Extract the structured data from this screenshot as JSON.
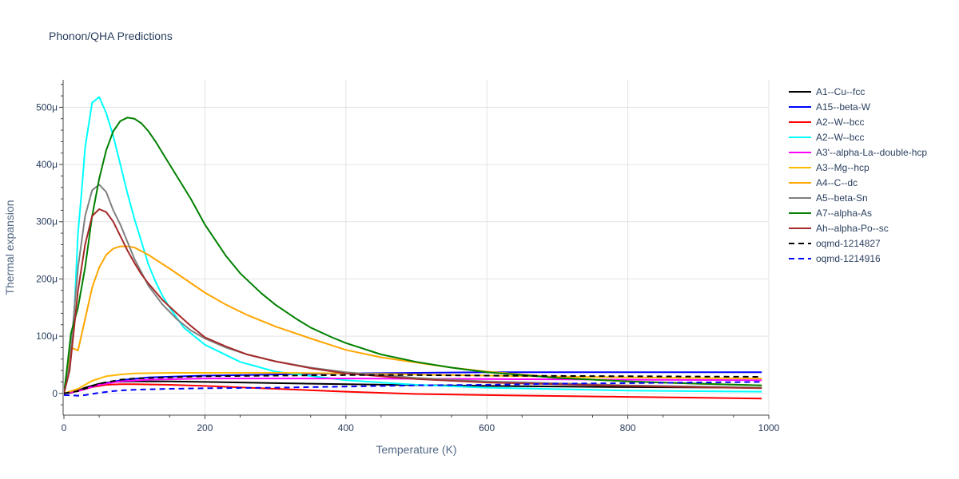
{
  "chart_data": {
    "type": "line",
    "title": "Phonon/QHA Predictions",
    "xlabel": "Temperature (K)",
    "ylabel": "Thermal expansion",
    "xlim": [
      0,
      1000
    ],
    "ylim": [
      -3.8e-05,
      0.000548
    ],
    "x_ticks": [
      0,
      200,
      400,
      600,
      800,
      1000
    ],
    "x_tick_labels": [
      "0",
      "200",
      "400",
      "600",
      "800",
      "1000"
    ],
    "y_ticks": [
      0,
      0.0001,
      0.0002,
      0.0003,
      0.0004,
      0.0005
    ],
    "y_tick_labels": [
      "0",
      "100μ",
      "200μ",
      "300μ",
      "400μ",
      "500μ"
    ],
    "grid": true,
    "legend_position": "right",
    "series": [
      {
        "name": "A1--Cu--fcc",
        "color": "#000000",
        "dash": "solid",
        "points": [
          [
            0,
            0
          ],
          [
            10,
            1e-06
          ],
          [
            20,
            5e-06
          ],
          [
            30,
            1e-05
          ],
          [
            50,
            1.7e-05
          ],
          [
            70,
            2e-05
          ],
          [
            100,
            2.1e-05
          ],
          [
            150,
            2.1e-05
          ],
          [
            200,
            2e-05
          ],
          [
            300,
            1.8e-05
          ],
          [
            400,
            1.6e-05
          ],
          [
            600,
            1.3e-05
          ],
          [
            800,
            1.1e-05
          ],
          [
            990,
            1e-05
          ]
        ]
      },
      {
        "name": "A15--beta-W",
        "color": "#0000ff",
        "dash": "solid",
        "points": [
          [
            0,
            0
          ],
          [
            20,
            4e-06
          ],
          [
            50,
            1.5e-05
          ],
          [
            80,
            2.3e-05
          ],
          [
            120,
            2.8e-05
          ],
          [
            200,
            3.1e-05
          ],
          [
            300,
            3.3e-05
          ],
          [
            400,
            3.5e-05
          ],
          [
            500,
            3.6e-05
          ],
          [
            600,
            3.7e-05
          ],
          [
            800,
            3.7e-05
          ],
          [
            990,
            3.7e-05
          ]
        ]
      },
      {
        "name": "A2--W--bcc",
        "color": "#ff0000",
        "dash": "solid",
        "points": [
          [
            0,
            0
          ],
          [
            20,
            4e-06
          ],
          [
            40,
            1.1e-05
          ],
          [
            60,
            1.5e-05
          ],
          [
            80,
            1.6e-05
          ],
          [
            100,
            1.6e-05
          ],
          [
            150,
            1.5e-05
          ],
          [
            200,
            1.3e-05
          ],
          [
            300,
            8e-06
          ],
          [
            400,
            3e-06
          ],
          [
            500,
            -1e-06
          ],
          [
            600,
            -3e-06
          ],
          [
            800,
            -6e-06
          ],
          [
            990,
            -9e-06
          ]
        ]
      },
      {
        "name": "A2--W--bcc",
        "color": "#00ffff",
        "dash": "solid",
        "points": [
          [
            0,
            0
          ],
          [
            8,
            4e-05
          ],
          [
            15,
            0.00015
          ],
          [
            20,
            0.00028
          ],
          [
            25,
            0.00035
          ],
          [
            30,
            0.00043
          ],
          [
            40,
            0.000508
          ],
          [
            50,
            0.000518
          ],
          [
            60,
            0.00049
          ],
          [
            70,
            0.00045
          ],
          [
            80,
            0.0004
          ],
          [
            90,
            0.00035
          ],
          [
            100,
            0.000305
          ],
          [
            110,
            0.000265
          ],
          [
            120,
            0.000225
          ],
          [
            130,
            0.000195
          ],
          [
            140,
            0.00017
          ],
          [
            150,
            0.00015
          ],
          [
            170,
            0.000115
          ],
          [
            200,
            8.5e-05
          ],
          [
            250,
            5.5e-05
          ],
          [
            300,
            3.8e-05
          ],
          [
            400,
            2.3e-05
          ],
          [
            500,
            1.5e-05
          ],
          [
            600,
            1e-05
          ],
          [
            800,
            5e-06
          ],
          [
            990,
            3e-06
          ]
        ]
      },
      {
        "name": "A3'--alpha-La--double-hcp",
        "color": "#ff00ff",
        "dash": "solid",
        "points": [
          [
            0,
            0
          ],
          [
            20,
            4e-06
          ],
          [
            50,
            1.5e-05
          ],
          [
            80,
            2.1e-05
          ],
          [
            120,
            2.4e-05
          ],
          [
            200,
            2.6e-05
          ],
          [
            300,
            2.6e-05
          ],
          [
            400,
            2.6e-05
          ],
          [
            600,
            2.5e-05
          ],
          [
            800,
            2.4e-05
          ],
          [
            990,
            2.3e-05
          ]
        ]
      },
      {
        "name": "A3--Mg--hcp",
        "color": "#ffb700",
        "dash": "solid",
        "points": [
          [
            0,
            0
          ],
          [
            20,
            8e-06
          ],
          [
            40,
            2.2e-05
          ],
          [
            60,
            3e-05
          ],
          [
            80,
            3.3e-05
          ],
          [
            100,
            3.5e-05
          ],
          [
            150,
            3.6e-05
          ],
          [
            200,
            3.6e-05
          ],
          [
            300,
            3.6e-05
          ],
          [
            400,
            3.5e-05
          ],
          [
            500,
            3.3e-05
          ],
          [
            600,
            3.1e-05
          ],
          [
            800,
            2.8e-05
          ],
          [
            990,
            2.6e-05
          ]
        ]
      },
      {
        "name": "A4--C--dc",
        "color": "#ffa500",
        "dash": "solid",
        "points": [
          [
            0,
            0
          ],
          [
            5,
            3e-05
          ],
          [
            10,
            8e-05
          ],
          [
            20,
            7.5e-05
          ],
          [
            30,
            0.00013
          ],
          [
            40,
            0.000185
          ],
          [
            50,
            0.00022
          ],
          [
            60,
            0.000242
          ],
          [
            70,
            0.000253
          ],
          [
            80,
            0.000257
          ],
          [
            90,
            0.000257
          ],
          [
            100,
            0.000255
          ],
          [
            120,
            0.000242
          ],
          [
            150,
            0.000218
          ],
          [
            200,
            0.000176
          ],
          [
            230,
            0.000155
          ],
          [
            260,
            0.000137
          ],
          [
            300,
            0.000117
          ],
          [
            350,
            9.6e-05
          ],
          [
            380,
            8.4e-05
          ],
          [
            400,
            7.6e-05
          ],
          [
            450,
            6.3e-05
          ],
          [
            500,
            5.4e-05
          ],
          [
            550,
            4.5e-05
          ],
          [
            600,
            3.8e-05
          ],
          [
            700,
            2.8e-05
          ],
          [
            800,
            2.1e-05
          ],
          [
            900,
            1.7e-05
          ],
          [
            990,
            1.4e-05
          ]
        ]
      },
      {
        "name": "A5--beta-Sn",
        "color": "#808080",
        "dash": "solid",
        "points": [
          [
            0,
            0
          ],
          [
            8,
            5e-05
          ],
          [
            15,
            0.00015
          ],
          [
            20,
            0.00022
          ],
          [
            30,
            0.00031
          ],
          [
            40,
            0.000355
          ],
          [
            50,
            0.000365
          ],
          [
            60,
            0.000352
          ],
          [
            70,
            0.00032
          ],
          [
            80,
            0.000295
          ],
          [
            90,
            0.000265
          ],
          [
            100,
            0.000235
          ],
          [
            120,
            0.000188
          ],
          [
            140,
            0.000155
          ],
          [
            160,
            0.00013
          ],
          [
            180,
            0.00011
          ],
          [
            200,
            9.6e-05
          ],
          [
            230,
            8e-05
          ],
          [
            260,
            6.8e-05
          ],
          [
            300,
            5.6e-05
          ],
          [
            350,
            4.5e-05
          ],
          [
            400,
            3.7e-05
          ],
          [
            500,
            2.7e-05
          ],
          [
            600,
            2.1e-05
          ],
          [
            800,
            1.4e-05
          ],
          [
            990,
            1e-05
          ]
        ]
      },
      {
        "name": "A7--alpha-As",
        "color": "#008000",
        "dash": "solid",
        "points": [
          [
            0,
            0
          ],
          [
            5,
            5e-05
          ],
          [
            10,
            0.000105
          ],
          [
            20,
            0.00015
          ],
          [
            30,
            0.00022
          ],
          [
            40,
            0.00031
          ],
          [
            50,
            0.000375
          ],
          [
            60,
            0.000425
          ],
          [
            70,
            0.000458
          ],
          [
            80,
            0.000476
          ],
          [
            90,
            0.000482
          ],
          [
            100,
            0.00048
          ],
          [
            110,
            0.000472
          ],
          [
            120,
            0.000458
          ],
          [
            130,
            0.00044
          ],
          [
            150,
            0.0004
          ],
          [
            180,
            0.00034
          ],
          [
            200,
            0.000295
          ],
          [
            230,
            0.00024
          ],
          [
            250,
            0.00021
          ],
          [
            280,
            0.000175
          ],
          [
            300,
            0.000155
          ],
          [
            330,
            0.00013
          ],
          [
            350,
            0.000115
          ],
          [
            380,
            9.8e-05
          ],
          [
            400,
            8.8e-05
          ],
          [
            450,
            6.8e-05
          ],
          [
            500,
            5.5e-05
          ],
          [
            550,
            4.5e-05
          ],
          [
            600,
            3.7e-05
          ],
          [
            700,
            2.7e-05
          ],
          [
            800,
            2.1e-05
          ],
          [
            900,
            1.7e-05
          ],
          [
            990,
            1.4e-05
          ]
        ]
      },
      {
        "name": "Ah--alpha-Po--sc",
        "color": "#a52a2a",
        "dash": "solid",
        "points": [
          [
            0,
            0
          ],
          [
            8,
            4e-05
          ],
          [
            15,
            0.00012
          ],
          [
            20,
            0.00018
          ],
          [
            30,
            0.00026
          ],
          [
            40,
            0.00031
          ],
          [
            50,
            0.000322
          ],
          [
            60,
            0.000317
          ],
          [
            70,
            0.0003
          ],
          [
            80,
            0.000275
          ],
          [
            90,
            0.00025
          ],
          [
            100,
            0.000228
          ],
          [
            110,
            0.000208
          ],
          [
            120,
            0.000192
          ],
          [
            140,
            0.000163
          ],
          [
            160,
            0.00014
          ],
          [
            180,
            0.000118
          ],
          [
            200,
            9.8e-05
          ],
          [
            230,
            8.2e-05
          ],
          [
            260,
            6.8e-05
          ],
          [
            300,
            5.6e-05
          ],
          [
            350,
            4.4e-05
          ],
          [
            400,
            3.5e-05
          ],
          [
            500,
            2.5e-05
          ],
          [
            600,
            1.9e-05
          ],
          [
            800,
            1.3e-05
          ],
          [
            990,
            9e-06
          ]
        ]
      },
      {
        "name": "oqmd-1214827",
        "color": "#000000",
        "dash": "dash",
        "points": [
          [
            0,
            0
          ],
          [
            20,
            4e-06
          ],
          [
            50,
            1.7e-05
          ],
          [
            80,
            2.4e-05
          ],
          [
            100,
            2.6e-05
          ],
          [
            150,
            2.8e-05
          ],
          [
            200,
            3e-05
          ],
          [
            300,
            3.1e-05
          ],
          [
            400,
            3.2e-05
          ],
          [
            500,
            3.2e-05
          ],
          [
            600,
            3.1e-05
          ],
          [
            800,
            3e-05
          ],
          [
            990,
            2.9e-05
          ]
        ]
      },
      {
        "name": "oqmd-1214916",
        "color": "#0000ff",
        "dash": "dash",
        "points": [
          [
            0,
            -3e-06
          ],
          [
            20,
            -4e-06
          ],
          [
            30,
            -3e-06
          ],
          [
            50,
            1e-06
          ],
          [
            70,
            4e-06
          ],
          [
            90,
            6e-06
          ],
          [
            120,
            7e-06
          ],
          [
            150,
            8e-06
          ],
          [
            200,
            9e-06
          ],
          [
            300,
            1e-05
          ],
          [
            400,
            1.2e-05
          ],
          [
            500,
            1.4e-05
          ],
          [
            600,
            1.5e-05
          ],
          [
            700,
            1.7e-05
          ],
          [
            800,
            1.8e-05
          ],
          [
            900,
            1.9e-05
          ],
          [
            990,
            2e-05
          ]
        ]
      }
    ]
  }
}
